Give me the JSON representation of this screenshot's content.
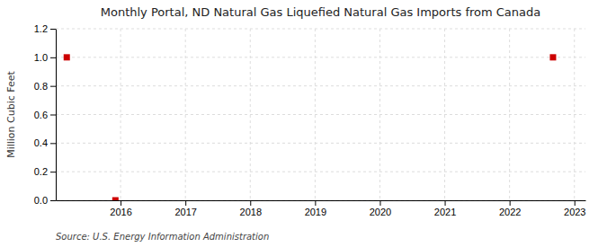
{
  "chart_data": {
    "type": "scatter",
    "title": "Monthly Portal, ND Natural Gas Liquefied Natural Gas Imports from Canada",
    "y_label": "Million Cubic Feet",
    "annotation": "Source: U.S. Energy Information Administration",
    "x": [
      2015.17,
      2015.92,
      2022.67
    ],
    "values": [
      1.0,
      0.0,
      1.0
    ],
    "color": "#cc0000",
    "marker": "square",
    "xlim": [
      2015.0,
      2023.17
    ],
    "ylim": [
      0.0,
      1.2
    ],
    "xticks": [
      2016,
      2017,
      2018,
      2019,
      2020,
      2021,
      2022,
      2023
    ],
    "yticks": [
      {
        "value": 0.0,
        "label": "0.0"
      },
      {
        "value": 0.2,
        "label": "0.2"
      },
      {
        "value": 0.4,
        "label": "0.4"
      },
      {
        "value": 0.6,
        "label": "0.6"
      },
      {
        "value": 0.8,
        "label": "0.8"
      },
      {
        "value": 1.0,
        "label": "1.0"
      },
      {
        "value": 1.2,
        "label": "1.2"
      }
    ],
    "grid": true
  }
}
